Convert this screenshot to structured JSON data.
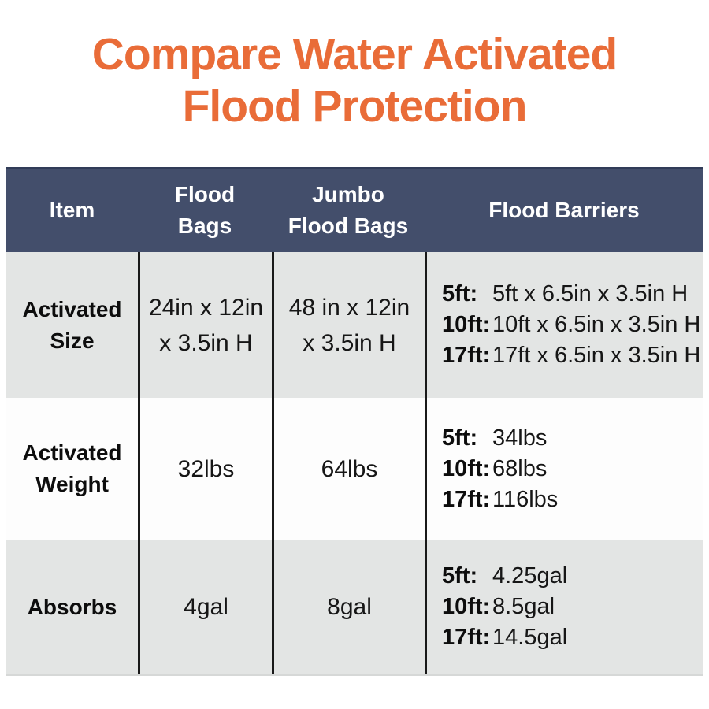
{
  "title": {
    "line1": "Compare Water Activated",
    "line2": "Flood Protection"
  },
  "colors": {
    "accent_orange": "#E96C38",
    "header_navy": "#434E6B",
    "row_gray": "#E3E5E4",
    "row_white": "#FDFDFD",
    "border_black": "#191919",
    "header_text": "#FFFFFF"
  },
  "table": {
    "header": {
      "item": "Item",
      "flood_bags_line1": "Flood",
      "flood_bags_line2": "Bags",
      "jumbo_line1": "Jumbo",
      "jumbo_line2": "Flood Bags",
      "barriers": "Flood Barriers"
    },
    "rows": [
      {
        "label_line1": "Activated",
        "label_line2": "Size",
        "flood_bags_line1": "24in x 12in",
        "flood_bags_line2": "x 3.5in H",
        "jumbo_line1": "48 in x 12in",
        "jumbo_line2": "x 3.5in H",
        "barriers": [
          {
            "size": "5ft:",
            "value": "5ft x 6.5in x 3.5in H"
          },
          {
            "size": "10ft:",
            "value": "10ft x 6.5in x 3.5in H"
          },
          {
            "size": "17ft:",
            "value": "17ft x 6.5in x 3.5in H"
          }
        ]
      },
      {
        "label_line1": "Activated",
        "label_line2": "Weight",
        "flood_bags": "32lbs",
        "jumbo": "64lbs",
        "barriers": [
          {
            "size": "5ft:",
            "value": "34lbs"
          },
          {
            "size": "10ft:",
            "value": "68lbs"
          },
          {
            "size": "17ft:",
            "value": "116lbs"
          }
        ]
      },
      {
        "label_line1": "Absorbs",
        "flood_bags": "4gal",
        "jumbo": "8gal",
        "barriers": [
          {
            "size": "5ft:",
            "value": "4.25gal"
          },
          {
            "size": "10ft:",
            "value": "8.5gal"
          },
          {
            "size": "17ft:",
            "value": "14.5gal"
          }
        ]
      }
    ]
  },
  "chart_data": {
    "type": "table",
    "title": "Compare Water Activated Flood Protection",
    "columns": [
      "Item",
      "Flood Bags",
      "Jumbo Flood Bags",
      "Flood Barriers"
    ],
    "rows": [
      [
        "Activated Size",
        "24in x 12in x 3.5in H",
        "48 in x 12in x 3.5in H",
        "5ft: 5ft x 6.5in x 3.5in H | 10ft: 10ft x 6.5in x 3.5in H | 17ft: 17ft x 6.5in x 3.5in H"
      ],
      [
        "Activated Weight",
        "32lbs",
        "64lbs",
        "5ft: 34lbs | 10ft: 68lbs | 17ft: 116lbs"
      ],
      [
        "Absorbs",
        "4gal",
        "8gal",
        "5ft: 4.25gal | 10ft: 8.5gal | 17ft: 14.5gal"
      ]
    ]
  }
}
